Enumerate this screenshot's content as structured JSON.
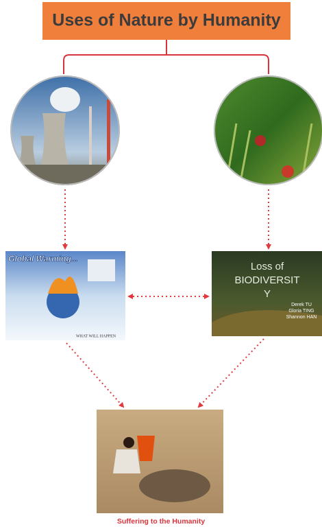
{
  "header": {
    "title": "Uses of Nature by Humanity"
  },
  "global_warming": {
    "title": "Global Warming...",
    "caption": "WHAT WILL HAPPEN"
  },
  "biodiversity": {
    "title_lines": [
      "Loss of",
      "BIODIVERSIT",
      "Y"
    ],
    "authors": [
      "Derek TU",
      "Gloria TING",
      "Shannon HAN"
    ]
  },
  "footer": {
    "caption": "Suffering to the Humanity"
  }
}
